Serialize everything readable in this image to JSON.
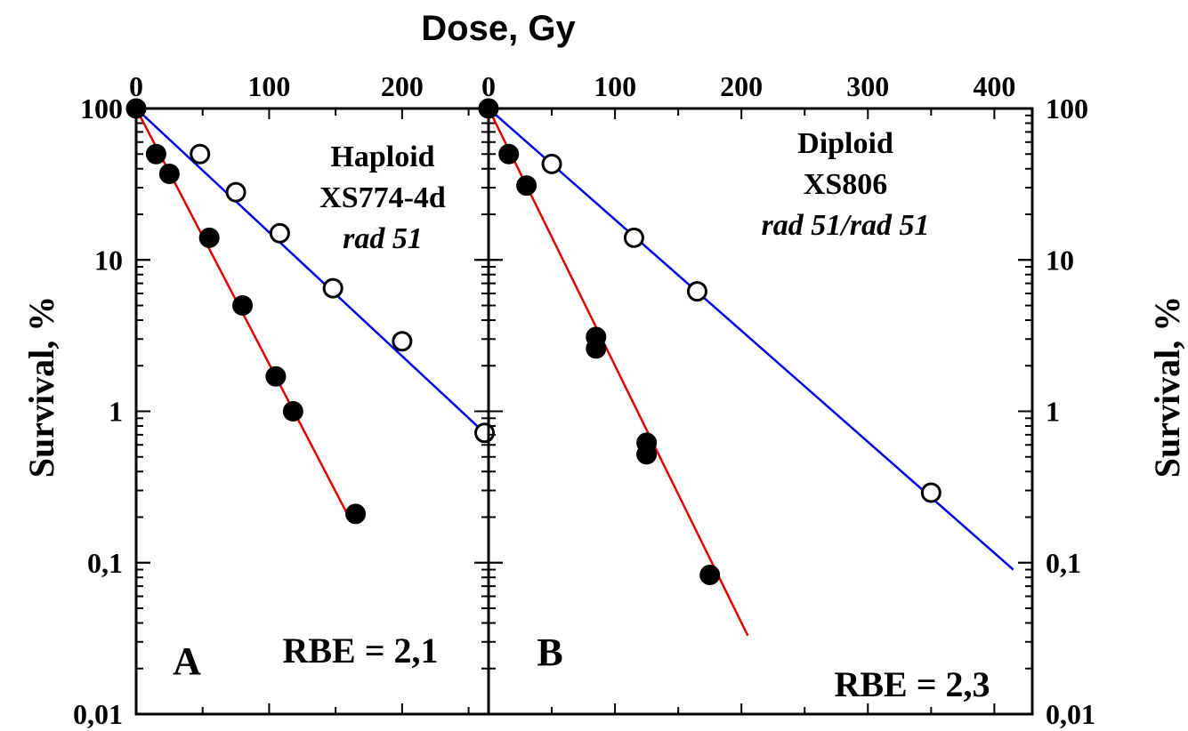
{
  "chart_data": {
    "type": "scatter",
    "title": "Dose, Gy",
    "ylabel_left": "Survival, %",
    "ylabel_right": "Survival, %",
    "yscale": "log",
    "ylim": [
      0.01,
      100
    ],
    "ytick_labels": [
      "100",
      "10",
      "1",
      "0,1",
      "0,01"
    ],
    "panels": [
      {
        "id": "A",
        "letter": "A",
        "xlim": [
          0,
          265
        ],
        "xtick_labels": [
          "0",
          "100",
          "200"
        ],
        "xticks": [
          0,
          100,
          200
        ],
        "annotation": [
          "Haploid",
          "XS774-4d",
          "rad 51"
        ],
        "rbe_text": "RBE = 2,1",
        "series": [
          {
            "marker": "filled",
            "color": "#e00000",
            "points": [
              [
                0,
                100
              ],
              [
                15,
                50
              ],
              [
                25,
                37
              ],
              [
                55,
                14
              ],
              [
                80,
                5
              ],
              [
                105,
                1.7
              ],
              [
                118,
                1.0
              ],
              [
                165,
                0.21
              ]
            ],
            "fit": [
              [
                0,
                100
              ],
              [
                160,
                0.2
              ]
            ]
          },
          {
            "marker": "open",
            "color": "#0000e0",
            "points": [
              [
                48,
                50
              ],
              [
                75,
                28
              ],
              [
                108,
                15
              ],
              [
                148,
                6.5
              ],
              [
                200,
                2.9
              ],
              [
                262,
                0.72
              ]
            ],
            "fit": [
              [
                0,
                100
              ],
              [
                262,
                0.72
              ]
            ]
          }
        ]
      },
      {
        "id": "B",
        "letter": "B",
        "xlim": [
          0,
          430
        ],
        "xtick_labels": [
          "0",
          "100",
          "200",
          "300",
          "400"
        ],
        "xticks": [
          0,
          100,
          200,
          300,
          400
        ],
        "annotation": [
          "Diploid",
          "XS806",
          "rad 51/rad 51"
        ],
        "rbe_text": "RBE = 2,3",
        "series": [
          {
            "marker": "filled",
            "color": "#e00000",
            "points": [
              [
                0,
                100
              ],
              [
                16,
                50
              ],
              [
                30,
                31
              ],
              [
                85,
                3.1
              ],
              [
                85,
                2.6
              ],
              [
                125,
                0.62
              ],
              [
                125,
                0.52
              ],
              [
                175,
                0.083
              ]
            ],
            "fit": [
              [
                0,
                100
              ],
              [
                205,
                0.033
              ]
            ]
          },
          {
            "marker": "open",
            "color": "#0000e0",
            "points": [
              [
                50,
                43
              ],
              [
                115,
                14
              ],
              [
                165,
                6.2
              ],
              [
                350,
                0.29
              ]
            ],
            "fit": [
              [
                0,
                100
              ],
              [
                415,
                0.09
              ]
            ]
          }
        ]
      }
    ]
  }
}
